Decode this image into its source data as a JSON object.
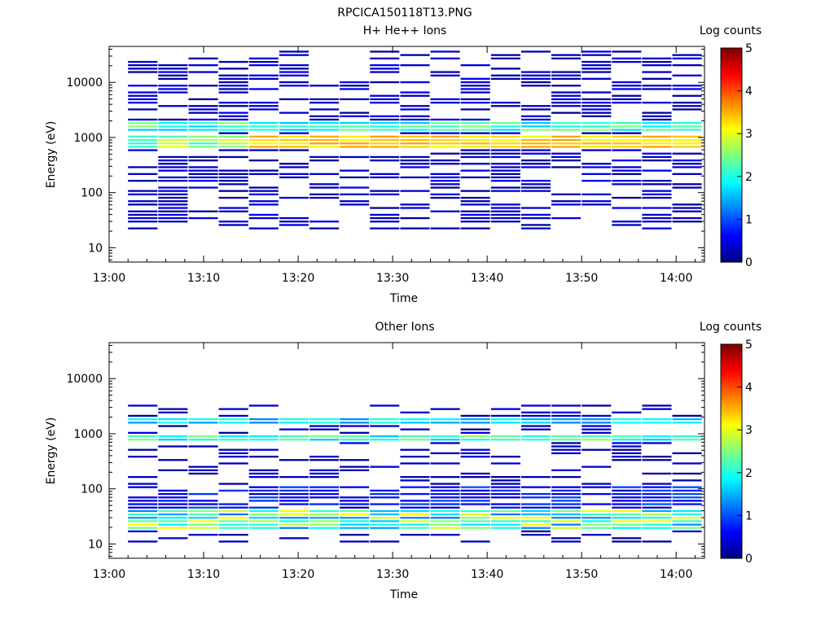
{
  "figure_title": "RPCICA150118T13.PNG",
  "chart_data": [
    {
      "type": "heatmap",
      "title": "H+ He++ Ions",
      "xlabel": "Time",
      "ylabel": "Energy (eV)",
      "x_ticks": [
        "13:00",
        "13:10",
        "13:20",
        "13:30",
        "13:40",
        "13:50",
        "14:00"
      ],
      "x_range_minutes": [
        0,
        63
      ],
      "y_ticks": [
        "10",
        "100",
        "1000",
        "10000"
      ],
      "y_scale": "log",
      "y_range": [
        5.5,
        45000
      ],
      "colorbar": {
        "label": "Log counts",
        "range": [
          0,
          5
        ],
        "ticks": [
          "0",
          "1",
          "2",
          "3",
          "4",
          "5"
        ]
      }
    },
    {
      "type": "heatmap",
      "title": "Other Ions",
      "xlabel": "Time",
      "ylabel": "Energy (eV)",
      "x_ticks": [
        "13:00",
        "13:10",
        "13:20",
        "13:30",
        "13:40",
        "13:50",
        "14:00"
      ],
      "x_range_minutes": [
        0,
        63
      ],
      "y_ticks": [
        "10",
        "100",
        "1000",
        "10000"
      ],
      "y_scale": "log",
      "y_range": [
        5.5,
        45000
      ],
      "colorbar": {
        "label": "Log counts",
        "range": [
          0,
          5
        ],
        "ticks": [
          "0",
          "1",
          "2",
          "3",
          "4",
          "5"
        ]
      }
    }
  ]
}
